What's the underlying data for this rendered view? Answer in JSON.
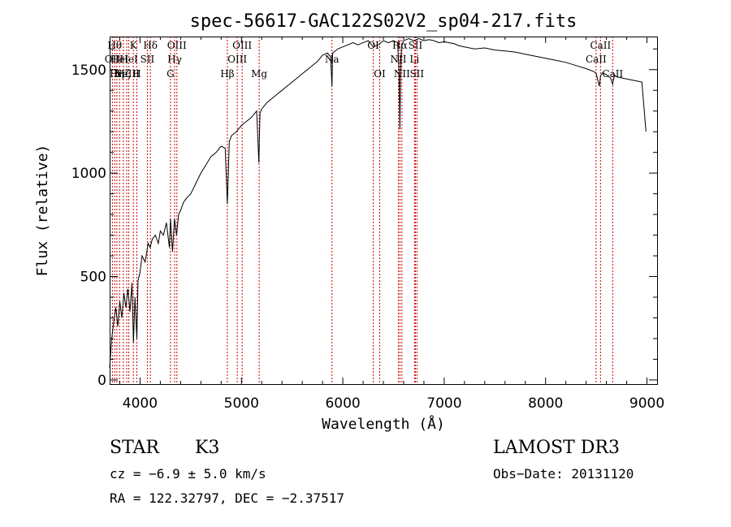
{
  "chart_data": {
    "type": "line",
    "title": "spec-56617-GAC122S02V2_sp04-217.fits",
    "xlabel": "Wavelength (Å)",
    "ylabel": "Flux (relative)",
    "xlim": [
      3700,
      9100
    ],
    "ylim": [
      -20,
      1660
    ],
    "xticks": [
      4000,
      5000,
      6000,
      7000,
      8000,
      9000
    ],
    "yticks": [
      0,
      500,
      1000,
      1500
    ],
    "xtick_labels": [
      "4000",
      "5000",
      "6000",
      "7000",
      "8000",
      "9000"
    ],
    "ytick_labels": [
      "0",
      "500",
      "1000",
      "1500"
    ],
    "series": [
      {
        "name": "flux",
        "x": [
          3700,
          3720,
          3740,
          3760,
          3780,
          3800,
          3820,
          3840,
          3860,
          3880,
          3900,
          3920,
          3935,
          3950,
          3968,
          3980,
          4000,
          4020,
          4050,
          4080,
          4100,
          4120,
          4150,
          4180,
          4200,
          4230,
          4260,
          4290,
          4300,
          4320,
          4340,
          4360,
          4380,
          4400,
          4430,
          4460,
          4500,
          4550,
          4600,
          4650,
          4700,
          4750,
          4800,
          4840,
          4861,
          4880,
          4900,
          4950,
          5000,
          5050,
          5100,
          5150,
          5172,
          5183,
          5200,
          5250,
          5300,
          5350,
          5400,
          5450,
          5500,
          5550,
          5600,
          5650,
          5700,
          5750,
          5800,
          5850,
          5880,
          5893,
          5900,
          5950,
          6000,
          6050,
          6100,
          6150,
          6200,
          6250,
          6300,
          6350,
          6400,
          6450,
          6500,
          6540,
          6555,
          6563,
          6570,
          6580,
          6600,
          6650,
          6700,
          6750,
          6800,
          6850,
          6900,
          6950,
          7000,
          7050,
          7100,
          7150,
          7200,
          7300,
          7400,
          7500,
          7600,
          7700,
          7800,
          7900,
          8000,
          8100,
          8200,
          8300,
          8400,
          8480,
          8500,
          8530,
          8542,
          8560,
          8600,
          8640,
          8662,
          8680,
          8700,
          8750,
          8800,
          8850,
          8900,
          8950,
          8990
        ],
        "y": [
          60,
          200,
          280,
          350,
          260,
          380,
          300,
          420,
          350,
          440,
          330,
          470,
          180,
          400,
          200,
          480,
          520,
          600,
          570,
          660,
          640,
          680,
          700,
          660,
          720,
          700,
          760,
          640,
          780,
          620,
          780,
          700,
          800,
          820,
          860,
          880,
          900,
          950,
          1000,
          1040,
          1080,
          1100,
          1130,
          1120,
          850,
          1150,
          1180,
          1200,
          1230,
          1250,
          1270,
          1300,
          1050,
          1290,
          1310,
          1340,
          1360,
          1380,
          1400,
          1420,
          1440,
          1460,
          1480,
          1500,
          1520,
          1540,
          1570,
          1580,
          1560,
          1420,
          1580,
          1600,
          1610,
          1620,
          1630,
          1620,
          1630,
          1640,
          1610,
          1620,
          1640,
          1630,
          1640,
          1630,
          1500,
          1210,
          1480,
          1620,
          1640,
          1650,
          1640,
          1650,
          1640,
          1645,
          1640,
          1630,
          1635,
          1630,
          1625,
          1615,
          1610,
          1600,
          1605,
          1595,
          1590,
          1585,
          1575,
          1565,
          1555,
          1545,
          1535,
          1520,
          1505,
          1490,
          1480,
          1420,
          1470,
          1485,
          1475,
          1460,
          1430,
          1475,
          1465,
          1460,
          1455,
          1450,
          1445,
          1440,
          1200
        ]
      }
    ],
    "lines": [
      {
        "wavelength": 3727,
        "label": "OII",
        "row": 1
      },
      {
        "wavelength": 3750,
        "label": "Hθ",
        "row": 0
      },
      {
        "wavelength": 3771,
        "label": "Hη",
        "row": 2
      },
      {
        "wavelength": 3798,
        "label": "HeI",
        "row": 1
      },
      {
        "wavelength": 3835,
        "label": "Hζ",
        "row": 2
      },
      {
        "wavelength": 3869,
        "label": "NeIII",
        "row": 2
      },
      {
        "wavelength": 3889,
        "label": "HeI",
        "row": 1
      },
      {
        "wavelength": 3934,
        "label": "K",
        "row": 0
      },
      {
        "wavelength": 3968,
        "label": "H",
        "row": 2
      },
      {
        "wavelength": 4072,
        "label": "SII",
        "row": 1
      },
      {
        "wavelength": 4102,
        "label": "Hδ",
        "row": 0
      },
      {
        "wavelength": 4300,
        "label": "G",
        "row": 2
      },
      {
        "wavelength": 4341,
        "label": "Hγ",
        "row": 1
      },
      {
        "wavelength": 4363,
        "label": "OIII",
        "row": 0
      },
      {
        "wavelength": 4861,
        "label": "Hβ",
        "row": 2
      },
      {
        "wavelength": 4959,
        "label": "OIII",
        "row": 1
      },
      {
        "wavelength": 5007,
        "label": "OIII",
        "row": 0
      },
      {
        "wavelength": 5175,
        "label": "Mg",
        "row": 2
      },
      {
        "wavelength": 5893,
        "label": "Na",
        "row": 1
      },
      {
        "wavelength": 6300,
        "label": "OI",
        "row": 0
      },
      {
        "wavelength": 6364,
        "label": "OI",
        "row": 2
      },
      {
        "wavelength": 6548,
        "label": "NII",
        "row": 1
      },
      {
        "wavelength": 6563,
        "label": "Hα",
        "row": 0
      },
      {
        "wavelength": 6583,
        "label": "NII",
        "row": 2
      },
      {
        "wavelength": 6707,
        "label": "Li",
        "row": 1
      },
      {
        "wavelength": 6716,
        "label": "SII",
        "row": 0
      },
      {
        "wavelength": 6731,
        "label": "SII",
        "row": 2
      },
      {
        "wavelength": 8498,
        "label": "CaII",
        "row": 1
      },
      {
        "wavelength": 8542,
        "label": "CaII",
        "row": 0
      },
      {
        "wavelength": 8662,
        "label": "CaII",
        "row": 2
      }
    ]
  },
  "info": {
    "object_class": "STAR",
    "subclass": "K3",
    "survey": "LAMOST DR3",
    "redshift": "cz = −6.9 ± 5.0 km/s",
    "obs_date": "Obs−Date: 20131120",
    "coords": "RA = 122.32797, DEC =  −2.37517"
  },
  "colors": {
    "axis": "#000000",
    "spectrum": "#000000",
    "line_marker": "#cc0000"
  }
}
